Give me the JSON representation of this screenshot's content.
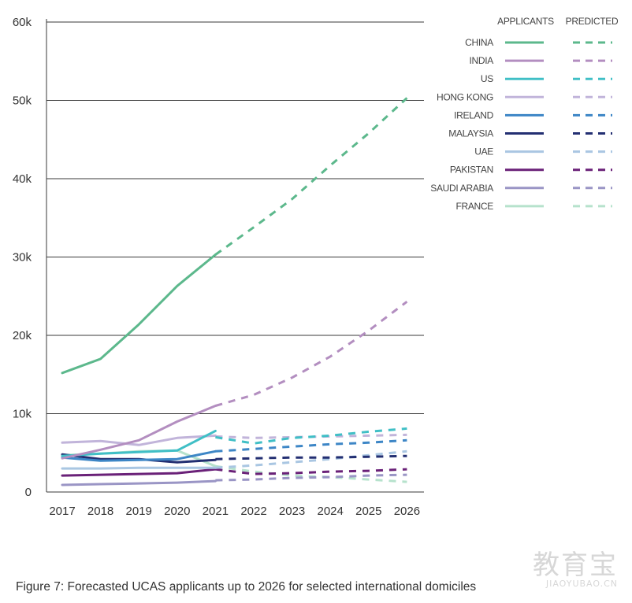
{
  "caption": "Figure 7: Forecasted UCAS applicants up to 2026 for selected international domiciles",
  "watermark": {
    "chinese": "教育宝",
    "latin": "JIAOYUBAO.CN"
  },
  "chart_data": {
    "type": "line",
    "title": "",
    "xlabel": "",
    "ylabel": "",
    "x": [
      "2017",
      "2018",
      "2019",
      "2020",
      "2021",
      "2022",
      "2023",
      "2024",
      "2025",
      "2026"
    ],
    "ylim": [
      0,
      60000
    ],
    "y_ticks": [
      0,
      10000,
      20000,
      30000,
      40000,
      50000,
      60000
    ],
    "y_tick_labels": [
      "0",
      "10k",
      "20k",
      "30k",
      "40k",
      "50k",
      "60k"
    ],
    "grid": "horizontal",
    "legend_position": "top-right",
    "legend_headers": {
      "actual": "APPLICANTS",
      "predicted": "PREDICTED"
    },
    "series": [
      {
        "name": "CHINA",
        "color": "#5cb88c",
        "actual": [
          15200,
          17000,
          21400,
          26300,
          30300
        ],
        "predicted": [
          30300,
          33800,
          37400,
          41700,
          45800,
          50300
        ]
      },
      {
        "name": "INDIA",
        "color": "#b38ec0",
        "actual": [
          4300,
          5400,
          6600,
          9000,
          11000
        ],
        "predicted": [
          11000,
          12400,
          14600,
          17300,
          20600,
          24300
        ]
      },
      {
        "name": "US",
        "color": "#40bfc6",
        "actual": [
          4600,
          4900,
          5100,
          5300,
          7800
        ],
        "predicted": [
          7000,
          6200,
          6900,
          7200,
          7700,
          8100
        ]
      },
      {
        "name": "HONG KONG",
        "color": "#c1b4da",
        "actual": [
          6300,
          6500,
          6000,
          6900,
          7200
        ],
        "predicted": [
          7100,
          6900,
          7000,
          7100,
          7200,
          7300
        ]
      },
      {
        "name": "IRELAND",
        "color": "#3d86c6",
        "actual": [
          4400,
          4000,
          4100,
          4200,
          5200
        ],
        "predicted": [
          5200,
          5500,
          5800,
          6100,
          6300,
          6600
        ]
      },
      {
        "name": "MALAYSIA",
        "color": "#232f72",
        "actual": [
          4800,
          4200,
          4200,
          3800,
          4100
        ],
        "predicted": [
          4200,
          4300,
          4400,
          4400,
          4500,
          4600
        ]
      },
      {
        "name": "UAE",
        "color": "#a9c6e2",
        "actual": [
          3000,
          3000,
          3100,
          3100,
          3100
        ],
        "predicted": [
          3100,
          3400,
          3800,
          4200,
          4700,
          5200
        ]
      },
      {
        "name": "PAKISTAN",
        "color": "#6a2178",
        "actual": [
          2100,
          2200,
          2300,
          2400,
          2900
        ],
        "predicted": [
          2900,
          2300,
          2400,
          2600,
          2700,
          2900
        ]
      },
      {
        "name": "SAUDI ARABIA",
        "color": "#9a95c5",
        "actual": [
          900,
          1000,
          1100,
          1200,
          1400
        ],
        "predicted": [
          1500,
          1600,
          1800,
          1900,
          2100,
          2200
        ]
      },
      {
        "name": "FRANCE",
        "color": "#b6e2cc",
        "actual": [
          4700,
          4900,
          5200,
          5300,
          3300
        ],
        "predicted": [
          3300,
          2600,
          2100,
          1900,
          1600,
          1300
        ]
      }
    ]
  }
}
